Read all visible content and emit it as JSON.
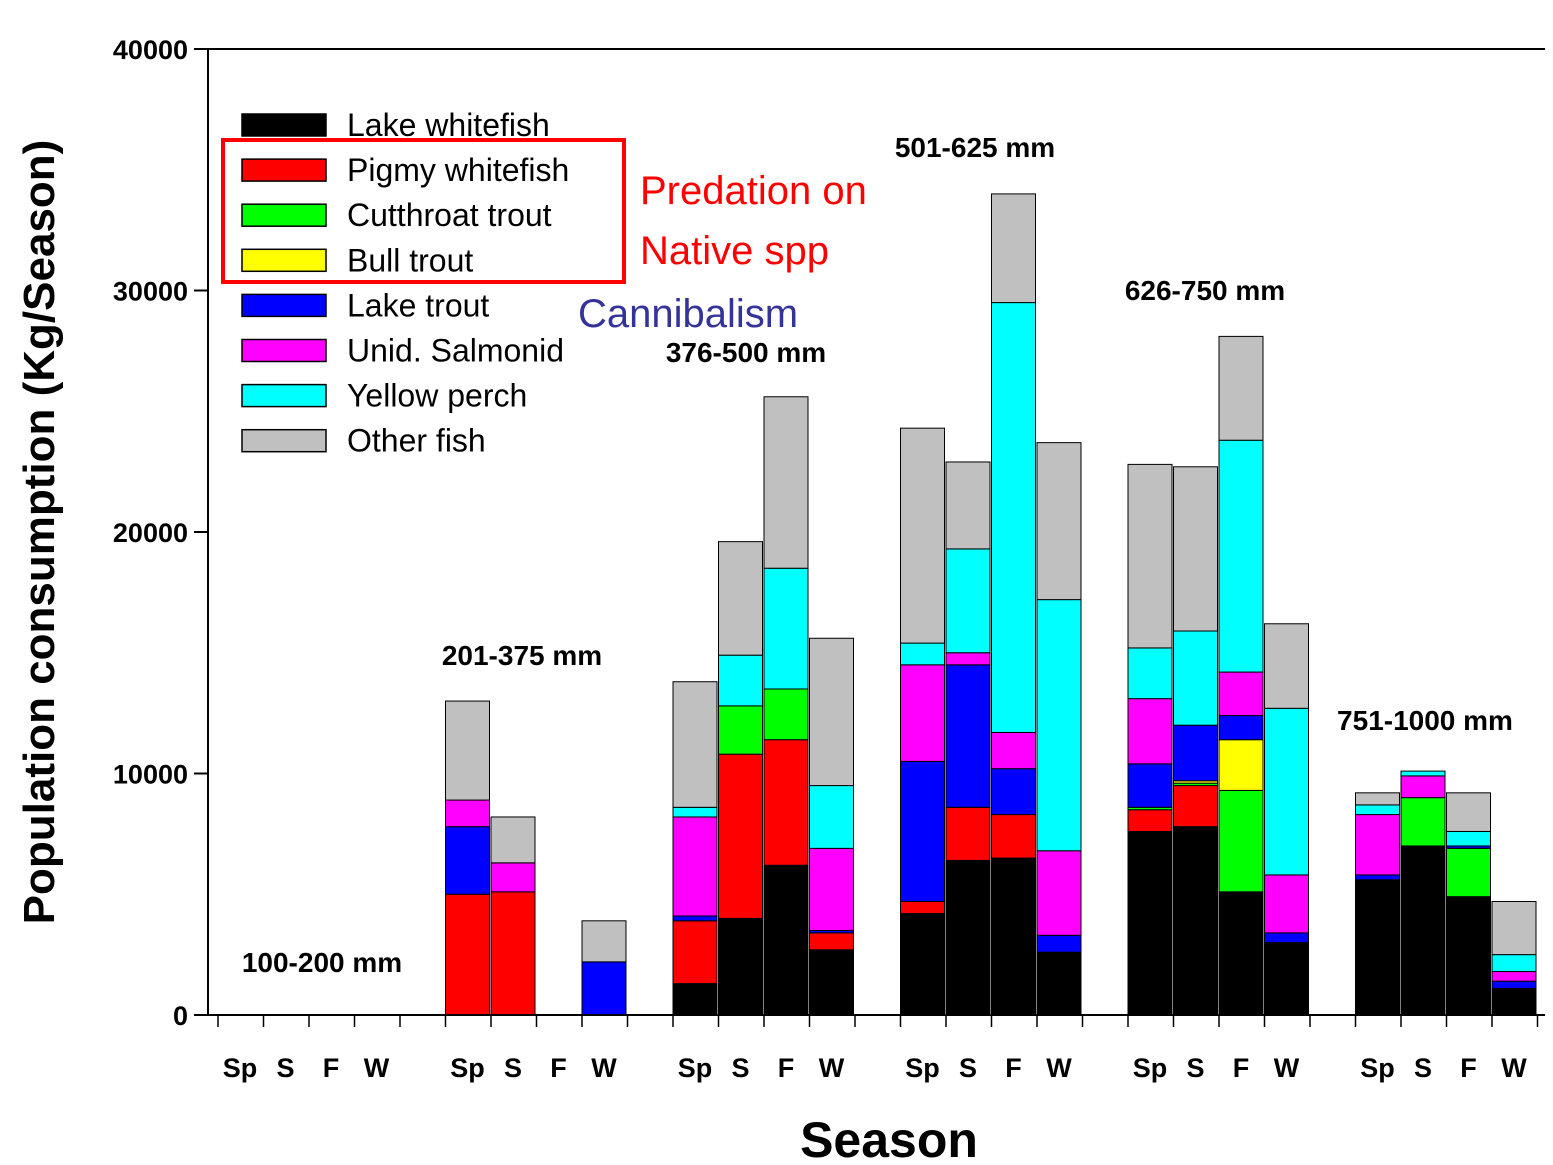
{
  "chart_data": {
    "type": "bar",
    "stacked": true,
    "xlabel": "Season",
    "ylabel": "Population consumption (Kg/Season)",
    "ylim": [
      0,
      40000
    ],
    "yticks": [
      "0",
      "10000",
      "20000",
      "30000",
      "40000"
    ],
    "season_labels": [
      "Sp",
      "S",
      "F",
      "W"
    ],
    "legend_position": "top-left",
    "series": [
      {
        "name": "Lake whitefish",
        "color": "#000000"
      },
      {
        "name": "Pigmy whitefish",
        "color": "#ff0000"
      },
      {
        "name": "Cutthroat trout",
        "color": "#00ff00"
      },
      {
        "name": "Bull trout",
        "color": "#ffff00"
      },
      {
        "name": "Lake trout",
        "color": "#0000ff"
      },
      {
        "name": "Unid. Salmonid",
        "color": "#ff00ff"
      },
      {
        "name": "Yellow perch",
        "color": "#00ffff"
      },
      {
        "name": "Other fish",
        "color": "#c0c0c0"
      }
    ],
    "groups": [
      {
        "label": "100-200 mm",
        "bars": [
          [],
          [],
          [],
          []
        ]
      },
      {
        "label": "201-375 mm",
        "bars": [
          [
            0,
            5000,
            0,
            0,
            2800,
            1100,
            0,
            4100
          ],
          [
            0,
            5100,
            0,
            0,
            0,
            1200,
            0,
            1900
          ],
          [],
          [
            0,
            0,
            0,
            0,
            2200,
            0,
            0,
            1700
          ]
        ]
      },
      {
        "label": "376-500 mm",
        "bars": [
          [
            1300,
            2600,
            0,
            0,
            200,
            4100,
            400,
            5200
          ],
          [
            4000,
            6800,
            2000,
            0,
            0,
            0,
            2100,
            4700
          ],
          [
            6200,
            5200,
            2100,
            0,
            0,
            0,
            5000,
            7100
          ],
          [
            2700,
            700,
            0,
            0,
            100,
            3400,
            2600,
            6100
          ]
        ]
      },
      {
        "label": "501-625 mm",
        "bars": [
          [
            4200,
            500,
            0,
            0,
            5800,
            4000,
            900,
            8900
          ],
          [
            6400,
            2200,
            0,
            0,
            5900,
            500,
            4300,
            3600
          ],
          [
            6500,
            1800,
            0,
            0,
            1900,
            1500,
            17800,
            4500
          ],
          [
            2600,
            0,
            0,
            0,
            700,
            3500,
            10400,
            6500
          ]
        ]
      },
      {
        "label": "626-750 mm",
        "bars": [
          [
            7600,
            900,
            100,
            0,
            1800,
            2700,
            2100,
            7600
          ],
          [
            7800,
            1700,
            100,
            100,
            2300,
            0,
            3900,
            6800
          ],
          [
            5100,
            0,
            4200,
            2100,
            1000,
            1800,
            9600,
            4300
          ],
          [
            3000,
            0,
            0,
            0,
            400,
            2400,
            6900,
            3500
          ]
        ]
      },
      {
        "label": "751-1000 mm",
        "bars": [
          [
            5600,
            0,
            0,
            0,
            200,
            2500,
            400,
            500
          ],
          [
            7000,
            0,
            2000,
            0,
            0,
            900,
            200,
            0
          ],
          [
            4900,
            0,
            2000,
            0,
            100,
            0,
            600,
            1600
          ],
          [
            1100,
            0,
            0,
            0,
            300,
            400,
            700,
            2200
          ]
        ]
      }
    ]
  },
  "annotations": {
    "native": [
      "Predation on",
      "Native spp"
    ],
    "native_color": "#ff0000",
    "cannibalism": "Cannibalism",
    "cannibalism_color": "#333399",
    "highlight_box_color": "#ff0000"
  }
}
